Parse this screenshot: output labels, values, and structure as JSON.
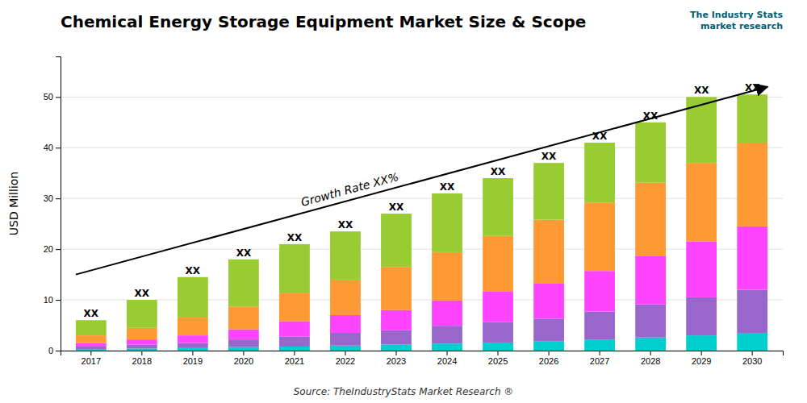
{
  "chart_data": {
    "type": "bar",
    "stacked": true,
    "title": "Chemical Energy Storage Equipment Market Size & Scope",
    "y_label": "USD Million",
    "source": "Source: TheIndustryStats Market Research ®",
    "logo": [
      "The Industry Stats",
      "market research"
    ],
    "categories": [
      "2017",
      "2018",
      "2019",
      "2020",
      "2021",
      "2022",
      "2023",
      "2024",
      "2025",
      "2026",
      "2027",
      "2028",
      "2029",
      "2030"
    ],
    "series": [
      {
        "color": "#00CFCF",
        "values": [
          0.3,
          0.4,
          0.5,
          0.7,
          0.8,
          1.0,
          1.2,
          1.4,
          1.6,
          1.8,
          2.2,
          2.6,
          3.0,
          3.5
        ]
      },
      {
        "color": "#9966CC",
        "values": [
          0.5,
          0.8,
          1.0,
          1.5,
          2.0,
          2.5,
          2.8,
          3.5,
          4.0,
          4.5,
          5.5,
          6.5,
          7.5,
          8.5
        ]
      },
      {
        "color": "#FF44FF",
        "values": [
          0.7,
          1.0,
          1.5,
          2.0,
          3.0,
          3.5,
          4.0,
          5.0,
          6.0,
          7.0,
          8.0,
          9.5,
          11.0,
          12.5
        ]
      },
      {
        "color": "#FF9933",
        "values": [
          1.5,
          2.3,
          3.5,
          4.5,
          5.5,
          7.0,
          8.5,
          9.5,
          11.0,
          12.5,
          13.5,
          14.5,
          15.5,
          16.5
        ]
      },
      {
        "color": "#99CC33",
        "values": [
          3.0,
          5.5,
          8.0,
          9.3,
          9.7,
          9.5,
          10.5,
          11.6,
          11.4,
          11.2,
          11.8,
          11.9,
          13.0,
          9.5
        ]
      }
    ],
    "bar_labels": [
      "XX",
      "XX",
      "XX",
      "XX",
      "XX",
      "XX",
      "XX",
      "XX",
      "XX",
      "XX",
      "XX",
      "XX",
      "XX",
      "XX"
    ],
    "annotation": {
      "text": "Growth Rate XX%",
      "y_start": 15,
      "y_end": 52
    },
    "ylim": [
      0,
      58
    ],
    "yticks": [
      0,
      10,
      20,
      30,
      40,
      50
    ],
    "grid": true
  }
}
